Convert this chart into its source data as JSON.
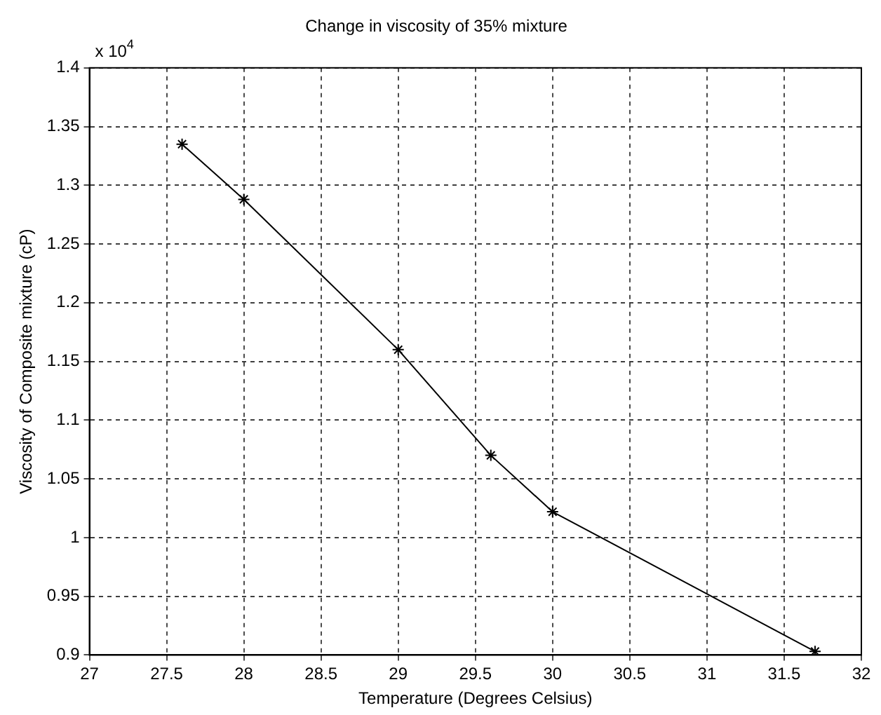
{
  "chart_data": {
    "type": "line",
    "title": "Change in viscosity of 35% mixture",
    "xlabel": "Temperature (Degrees Celsius)",
    "ylabel": "Viscosity of Composite mixture (cP)",
    "annotations": [
      "x 10$^{4}$"
    ],
    "x": [
      27.6,
      28,
      29,
      29.6,
      30,
      31.7
    ],
    "series": [
      {
        "color": "#000000",
        "values": [
          1.335,
          1.288,
          1.16,
          1.07,
          1.022,
          0.903
        ]
      }
    ],
    "xlim": [
      27,
      32
    ],
    "xticks": [
      27,
      27.5,
      28,
      28.5,
      29,
      29.5,
      30,
      30.5,
      31,
      31.5,
      32
    ],
    "ylim": [
      0.9,
      1.4
    ],
    "yticks": [
      0.9,
      0.95,
      1,
      1.05,
      1.1,
      1.15,
      1.2,
      1.25,
      1.3,
      1.35,
      1.4
    ],
    "grid": true,
    "legend": false,
    "marker": "cross",
    "line_style": "solid"
  }
}
